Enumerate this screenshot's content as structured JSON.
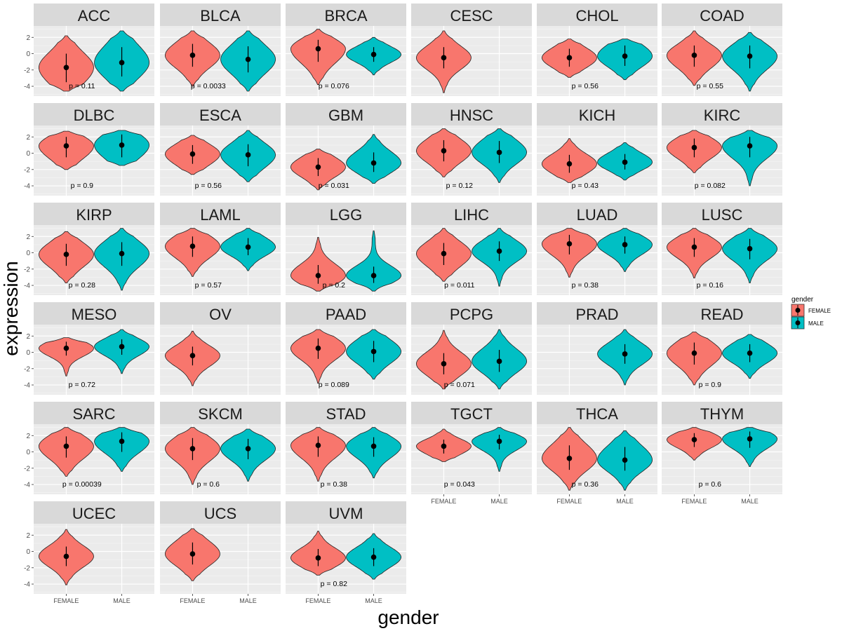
{
  "chart_data": {
    "type": "violin",
    "xlabel": "gender",
    "ylabel": "expression",
    "legend": {
      "title": "gender",
      "placement": "right",
      "entries": [
        {
          "label": "FEMALE",
          "color": "#F8766D"
        },
        {
          "label": "MALE",
          "color": "#00BFC4"
        }
      ]
    },
    "categories": [
      "FEMALE",
      "MALE"
    ],
    "y_ticks": [
      2,
      0,
      -2,
      -4
    ],
    "ylim": [
      -5.2,
      3.4
    ],
    "grid": true,
    "panels": [
      {
        "name": "ACC",
        "pvalue": "p = 0.11",
        "female": {
          "min": -4.6,
          "max": 2.2,
          "median": -1.7,
          "q1": -3.5,
          "q3": 0.0
        },
        "male": {
          "min": -4.6,
          "max": 2.8,
          "median": -1.1,
          "q1": -2.8,
          "q3": 0.8
        }
      },
      {
        "name": "BLCA",
        "pvalue": "p = 0.0033",
        "female": {
          "min": -4.0,
          "max": 2.8,
          "median": -0.2,
          "q1": -1.6,
          "q3": 1.2
        },
        "male": {
          "min": -4.6,
          "max": 2.8,
          "median": -0.7,
          "q1": -2.3,
          "q3": 0.9
        }
      },
      {
        "name": "BRCA",
        "pvalue": "p = 0.076",
        "female": {
          "min": -3.8,
          "max": 3.0,
          "median": 0.6,
          "q1": -1.0,
          "q3": 1.7
        },
        "male": {
          "min": -2.6,
          "max": 2.0,
          "median": -0.1,
          "q1": -1.0,
          "q3": 0.8
        }
      },
      {
        "name": "CESC",
        "pvalue": "",
        "female": {
          "min": -4.8,
          "max": 2.8,
          "median": -0.5,
          "q1": -1.8,
          "q3": 0.8
        }
      },
      {
        "name": "CHOL",
        "pvalue": "p = 0.56",
        "female": {
          "min": -2.9,
          "max": 1.8,
          "median": -0.5,
          "q1": -1.6,
          "q3": 0.6
        },
        "male": {
          "min": -3.2,
          "max": 1.8,
          "median": -0.3,
          "q1": -1.5,
          "q3": 1.0
        }
      },
      {
        "name": "COAD",
        "pvalue": "p = 0.55",
        "female": {
          "min": -3.9,
          "max": 2.8,
          "median": -0.2,
          "q1": -1.6,
          "q3": 1.0
        },
        "male": {
          "min": -4.6,
          "max": 2.6,
          "median": -0.3,
          "q1": -1.8,
          "q3": 1.0
        }
      },
      {
        "name": "DLBC",
        "pvalue": "p = 0.9",
        "female": {
          "min": -2.0,
          "max": 2.7,
          "median": 0.9,
          "q1": -0.5,
          "q3": 2.0
        },
        "male": {
          "min": -1.5,
          "max": 2.8,
          "median": 1.0,
          "q1": -0.5,
          "q3": 2.3
        }
      },
      {
        "name": "ESCA",
        "pvalue": "p = 0.56",
        "female": {
          "min": -2.6,
          "max": 2.2,
          "median": -0.1,
          "q1": -1.3,
          "q3": 1.0
        },
        "male": {
          "min": -3.5,
          "max": 2.8,
          "median": -0.2,
          "q1": -1.6,
          "q3": 1.1
        }
      },
      {
        "name": "GBM",
        "pvalue": "p = 0.031",
        "female": {
          "min": -4.5,
          "max": 0.5,
          "median": -1.7,
          "q1": -2.8,
          "q3": -0.6
        },
        "male": {
          "min": -3.7,
          "max": 2.3,
          "median": -1.2,
          "q1": -2.3,
          "q3": 0.1
        }
      },
      {
        "name": "HNSC",
        "pvalue": "p = 0.12",
        "female": {
          "min": -2.9,
          "max": 3.0,
          "median": 0.3,
          "q1": -1.0,
          "q3": 1.6
        },
        "male": {
          "min": -3.6,
          "max": 3.0,
          "median": 0.1,
          "q1": -1.2,
          "q3": 1.5
        }
      },
      {
        "name": "KICH",
        "pvalue": "p = 0.43",
        "female": {
          "min": -3.6,
          "max": 1.8,
          "median": -1.3,
          "q1": -2.4,
          "q3": -0.2
        },
        "male": {
          "min": -3.3,
          "max": 1.3,
          "median": -1.1,
          "q1": -2.0,
          "q3": -0.1
        }
      },
      {
        "name": "KIRC",
        "pvalue": "p = 0.082",
        "female": {
          "min": -2.4,
          "max": 2.8,
          "median": 0.7,
          "q1": -0.5,
          "q3": 1.8
        },
        "male": {
          "min": -4.0,
          "max": 2.8,
          "median": 0.9,
          "q1": -0.5,
          "q3": 2.0
        }
      },
      {
        "name": "KIRP",
        "pvalue": "p = 0.28",
        "female": {
          "min": -3.7,
          "max": 2.6,
          "median": -0.2,
          "q1": -1.6,
          "q3": 1.1
        },
        "male": {
          "min": -4.6,
          "max": 3.0,
          "median": -0.1,
          "q1": -1.6,
          "q3": 1.3
        }
      },
      {
        "name": "LAML",
        "pvalue": "p = 0.57",
        "female": {
          "min": -2.9,
          "max": 3.0,
          "median": 0.8,
          "q1": -0.5,
          "q3": 2.0
        },
        "male": {
          "min": -2.2,
          "max": 3.0,
          "median": 0.7,
          "q1": -0.3,
          "q3": 1.8
        }
      },
      {
        "name": "LGG",
        "pvalue": "p = 0.2",
        "female": {
          "min": -4.7,
          "max": 1.9,
          "median": -2.8,
          "q1": -3.8,
          "q3": -1.5
        },
        "male": {
          "min": -4.7,
          "max": 2.7,
          "median": -2.8,
          "q1": -3.7,
          "q3": -1.7
        }
      },
      {
        "name": "LIHC",
        "pvalue": "p = 0.011",
        "female": {
          "min": -3.5,
          "max": 3.0,
          "median": -0.1,
          "q1": -1.5,
          "q3": 1.2
        },
        "male": {
          "min": -4.1,
          "max": 3.0,
          "median": 0.2,
          "q1": -1.0,
          "q3": 1.4
        }
      },
      {
        "name": "LUAD",
        "pvalue": "p = 0.38",
        "female": {
          "min": -3.0,
          "max": 3.0,
          "median": 1.1,
          "q1": -0.2,
          "q3": 2.2
        },
        "male": {
          "min": -2.3,
          "max": 3.0,
          "median": 1.0,
          "q1": -0.1,
          "q3": 2.0
        }
      },
      {
        "name": "LUSC",
        "pvalue": "p = 0.16",
        "female": {
          "min": -3.1,
          "max": 3.0,
          "median": 0.7,
          "q1": -0.5,
          "q3": 1.8
        },
        "male": {
          "min": -3.7,
          "max": 3.0,
          "median": 0.5,
          "q1": -0.8,
          "q3": 1.7
        }
      },
      {
        "name": "MESO",
        "pvalue": "p = 0.72",
        "female": {
          "min": -2.9,
          "max": 1.8,
          "median": 0.5,
          "q1": -0.4,
          "q3": 1.3
        },
        "male": {
          "min": -2.6,
          "max": 2.8,
          "median": 0.7,
          "q1": -0.3,
          "q3": 1.6
        }
      },
      {
        "name": "OV",
        "pvalue": "",
        "female": {
          "min": -4.1,
          "max": 2.6,
          "median": -0.4,
          "q1": -1.6,
          "q3": 0.7
        }
      },
      {
        "name": "PAAD",
        "pvalue": "p = 0.089",
        "female": {
          "min": -3.8,
          "max": 2.8,
          "median": 0.5,
          "q1": -0.8,
          "q3": 1.7
        },
        "male": {
          "min": -3.3,
          "max": 2.8,
          "median": 0.1,
          "q1": -1.2,
          "q3": 1.4
        }
      },
      {
        "name": "PCPG",
        "pvalue": "p = 0.071",
        "female": {
          "min": -4.5,
          "max": 2.7,
          "median": -1.4,
          "q1": -2.7,
          "q3": -0.1
        },
        "male": {
          "min": -4.5,
          "max": 2.8,
          "median": -1.1,
          "q1": -2.4,
          "q3": 0.3
        }
      },
      {
        "name": "PRAD",
        "pvalue": "",
        "male": {
          "min": -4.0,
          "max": 2.8,
          "median": -0.2,
          "q1": -1.4,
          "q3": 1.0
        }
      },
      {
        "name": "READ",
        "pvalue": "p = 0.9",
        "female": {
          "min": -4.0,
          "max": 2.5,
          "median": -0.1,
          "q1": -1.5,
          "q3": 1.2
        },
        "male": {
          "min": -3.2,
          "max": 2.2,
          "median": -0.1,
          "q1": -1.2,
          "q3": 1.0
        }
      },
      {
        "name": "SARC",
        "pvalue": "p = 0.00039",
        "female": {
          "min": -3.0,
          "max": 3.0,
          "median": 0.7,
          "q1": -0.7,
          "q3": 1.9
        },
        "male": {
          "min": -2.4,
          "max": 3.0,
          "median": 1.3,
          "q1": 0.0,
          "q3": 2.4
        }
      },
      {
        "name": "SKCM",
        "pvalue": "p = 0.6",
        "female": {
          "min": -4.0,
          "max": 3.0,
          "median": 0.4,
          "q1": -1.0,
          "q3": 1.7
        },
        "male": {
          "min": -3.6,
          "max": 2.8,
          "median": 0.4,
          "q1": -0.9,
          "q3": 1.6
        }
      },
      {
        "name": "STAD",
        "pvalue": "p = 0.38",
        "female": {
          "min": -3.6,
          "max": 3.0,
          "median": 0.8,
          "q1": -0.6,
          "q3": 1.9
        },
        "male": {
          "min": -3.2,
          "max": 3.0,
          "median": 0.7,
          "q1": -0.6,
          "q3": 1.8
        }
      },
      {
        "name": "TGCT",
        "pvalue": "p = 0.043",
        "female": {
          "min": -1.2,
          "max": 2.8,
          "median": 0.7,
          "q1": -0.2,
          "q3": 1.5
        },
        "male": {
          "min": -2.4,
          "max": 3.0,
          "median": 1.3,
          "q1": 0.3,
          "q3": 2.1
        }
      },
      {
        "name": "THCA",
        "pvalue": "p = 0.36",
        "female": {
          "min": -4.7,
          "max": 3.0,
          "median": -0.8,
          "q1": -2.2,
          "q3": 0.8
        },
        "male": {
          "min": -4.7,
          "max": 2.6,
          "median": -1.0,
          "q1": -2.3,
          "q3": 0.6
        }
      },
      {
        "name": "THYM",
        "pvalue": "p = 0.6",
        "female": {
          "min": -1.0,
          "max": 3.0,
          "median": 1.5,
          "q1": 0.6,
          "q3": 2.3
        },
        "male": {
          "min": -1.8,
          "max": 3.0,
          "median": 1.6,
          "q1": 0.5,
          "q3": 2.5
        }
      },
      {
        "name": "UCEC",
        "pvalue": "",
        "female": {
          "min": -4.1,
          "max": 2.7,
          "median": -0.6,
          "q1": -1.8,
          "q3": 0.6
        }
      },
      {
        "name": "UCS",
        "pvalue": "",
        "female": {
          "min": -3.6,
          "max": 2.8,
          "median": -0.3,
          "q1": -1.6,
          "q3": 1.1
        }
      },
      {
        "name": "UVM",
        "pvalue": "p = 0.82",
        "female": {
          "min": -2.9,
          "max": 2.5,
          "median": -0.8,
          "q1": -1.8,
          "q3": 0.3
        },
        "male": {
          "min": -3.4,
          "max": 2.2,
          "median": -0.7,
          "q1": -1.8,
          "q3": 0.4
        }
      }
    ]
  }
}
